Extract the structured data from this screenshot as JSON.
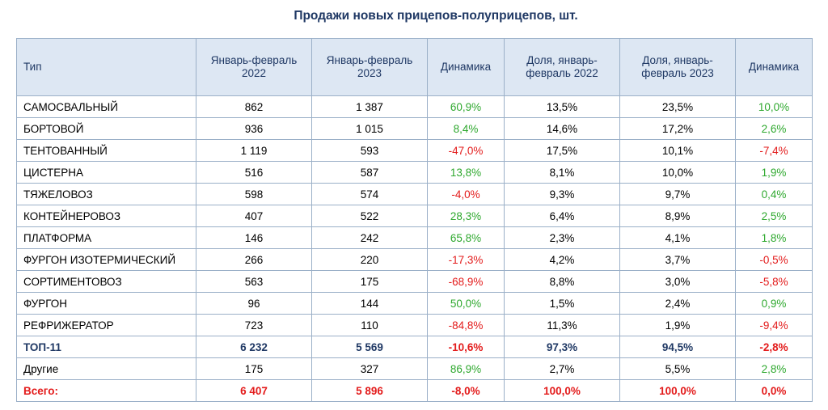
{
  "title": "Продажи новых прицепов-полуприцепов, шт.",
  "headers": {
    "type": "Тип",
    "jan_feb_2022": "Январь-февраль 2022",
    "jan_feb_2023": "Январь-февраль 2023",
    "dynamics": "Динамика",
    "share_2022": "Доля, январь-февраль 2022",
    "share_2023": "Доля, январь-февраль 2023",
    "share_dynamics": "Динамика"
  },
  "rows": [
    {
      "type": "САМОСВАЛЬНЫЙ",
      "v2022": "862",
      "v2023": "1 387",
      "dyn": "60,9%",
      "s2022": "13,5%",
      "s2023": "23,5%",
      "sdyn": "10,0%"
    },
    {
      "type": "БОРТОВОЙ",
      "v2022": "936",
      "v2023": "1 015",
      "dyn": "8,4%",
      "s2022": "14,6%",
      "s2023": "17,2%",
      "sdyn": "2,6%"
    },
    {
      "type": "ТЕНТОВАННЫЙ",
      "v2022": "1 119",
      "v2023": "593",
      "dyn": "-47,0%",
      "s2022": "17,5%",
      "s2023": "10,1%",
      "sdyn": "-7,4%"
    },
    {
      "type": "ЦИСТЕРНА",
      "v2022": "516",
      "v2023": "587",
      "dyn": "13,8%",
      "s2022": "8,1%",
      "s2023": "10,0%",
      "sdyn": "1,9%"
    },
    {
      "type": "ТЯЖЕЛОВОЗ",
      "v2022": "598",
      "v2023": "574",
      "dyn": "-4,0%",
      "s2022": "9,3%",
      "s2023": "9,7%",
      "sdyn": "0,4%"
    },
    {
      "type": "КОНТЕЙНЕРОВОЗ",
      "v2022": "407",
      "v2023": "522",
      "dyn": "28,3%",
      "s2022": "6,4%",
      "s2023": "8,9%",
      "sdyn": "2,5%"
    },
    {
      "type": "ПЛАТФОРМА",
      "v2022": "146",
      "v2023": "242",
      "dyn": "65,8%",
      "s2022": "2,3%",
      "s2023": "4,1%",
      "sdyn": "1,8%"
    },
    {
      "type": "ФУРГОН ИЗОТЕРМИЧЕСКИЙ",
      "v2022": "266",
      "v2023": "220",
      "dyn": "-17,3%",
      "s2022": "4,2%",
      "s2023": "3,7%",
      "sdyn": "-0,5%"
    },
    {
      "type": "СОРТИМЕНТОВОЗ",
      "v2022": "563",
      "v2023": "175",
      "dyn": "-68,9%",
      "s2022": "8,8%",
      "s2023": "3,0%",
      "sdyn": "-5,8%"
    },
    {
      "type": "ФУРГОН",
      "v2022": "96",
      "v2023": "144",
      "dyn": "50,0%",
      "s2022": "1,5%",
      "s2023": "2,4%",
      "sdyn": "0,9%"
    },
    {
      "type": "РЕФРИЖЕРАТОР",
      "v2022": "723",
      "v2023": "110",
      "dyn": "-84,8%",
      "s2022": "11,3%",
      "s2023": "1,9%",
      "sdyn": "-9,4%"
    }
  ],
  "top11": {
    "type": "ТОП-11",
    "v2022": "6 232",
    "v2023": "5 569",
    "dyn": "-10,6%",
    "s2022": "97,3%",
    "s2023": "94,5%",
    "sdyn": "-2,8%"
  },
  "others": {
    "type": "Другие",
    "v2022": "175",
    "v2023": "327",
    "dyn": "86,9%",
    "s2022": "2,7%",
    "s2023": "5,5%",
    "sdyn": "2,8%"
  },
  "total": {
    "type": "Всего:",
    "v2022": "6 407",
    "v2023": "5 896",
    "dyn": "-8,0%",
    "s2022": "100,0%",
    "s2023": "100,0%",
    "sdyn": "0,0%"
  },
  "colors": {
    "positive": "#2ea82e",
    "negative": "#e31b1b",
    "header_bg": "#dde7f3",
    "header_text": "#1f3864",
    "border": "#9bb0c8"
  }
}
